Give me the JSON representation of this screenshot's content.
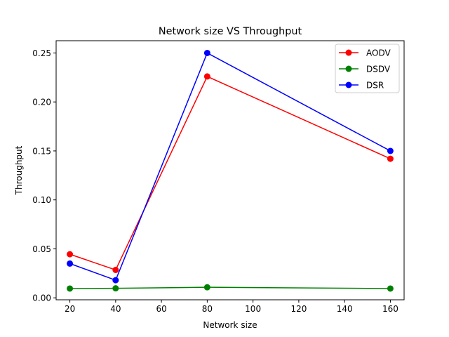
{
  "chart_data": {
    "type": "line",
    "title": "Network size VS Throughput",
    "xlabel": "Network size",
    "ylabel": "Throughput",
    "xlim": [
      14,
      166
    ],
    "ylim": [
      -0.002,
      0.2625
    ],
    "xticks": [
      20,
      40,
      60,
      80,
      100,
      120,
      140,
      160
    ],
    "xtick_labels": [
      "20",
      "40",
      "60",
      "80",
      "100",
      "120",
      "140",
      "160"
    ],
    "yticks": [
      0.0,
      0.05,
      0.1,
      0.15,
      0.2,
      0.25
    ],
    "ytick_labels": [
      "0.00",
      "0.05",
      "0.10",
      "0.15",
      "0.20",
      "0.25"
    ],
    "x": [
      20,
      40,
      80,
      160
    ],
    "series": [
      {
        "name": "AODV",
        "color": "#ff0000",
        "values": [
          0.0445,
          0.0285,
          0.226,
          0.142
        ]
      },
      {
        "name": "DSDV",
        "color": "#008000",
        "values": [
          0.0095,
          0.0097,
          0.0108,
          0.0095
        ]
      },
      {
        "name": "DSR",
        "color": "#0000ff",
        "values": [
          0.035,
          0.018,
          0.25,
          0.15
        ]
      }
    ],
    "grid": false,
    "legend": "top-right",
    "marker": "circle"
  }
}
